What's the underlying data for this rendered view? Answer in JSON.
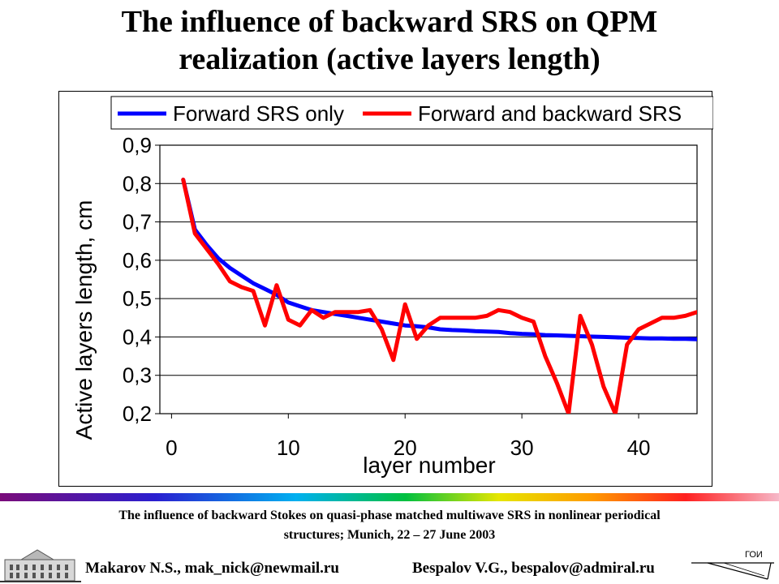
{
  "slide": {
    "title_line1": "The influence of backward SRS on QPM",
    "title_line2": "realization (active layers length)",
    "caption_line1": "The influence of backward Stokes on quasi-phase matched multiwave SRS in nonlinear periodical",
    "caption_line2": "structures;  Munich, 22 – 27 June 2003",
    "author1": "Makarov N.S., mak_nick@newmail.ru",
    "author2": "Bespalov V.G., bespalov@admiral.ru",
    "logo_right_text": "ГОИ"
  },
  "chart_data": {
    "type": "line",
    "title": "",
    "xlabel": "layer number",
    "ylabel": "Active layers length, cm",
    "xlim": [
      -1,
      45
    ],
    "ylim": [
      0.2,
      0.9
    ],
    "xticks": [
      0,
      10,
      20,
      30,
      40
    ],
    "xtick_labels": [
      "0",
      "10",
      "20",
      "30",
      "40"
    ],
    "yticks": [
      0.2,
      0.3,
      0.4,
      0.5,
      0.6,
      0.7,
      0.8,
      0.9
    ],
    "ytick_labels": [
      "0,2",
      "0,3",
      "0,4",
      "0,5",
      "0,6",
      "0,7",
      "0,8",
      "0,9"
    ],
    "grid": "horizontal",
    "legend_position": "top",
    "series": [
      {
        "name": "Forward SRS only",
        "color": "#0000ff",
        "x": [
          1,
          2,
          3,
          4,
          5,
          6,
          7,
          8,
          9,
          10,
          11,
          12,
          13,
          14,
          15,
          16,
          17,
          18,
          19,
          20,
          21,
          22,
          23,
          24,
          25,
          26,
          27,
          28,
          29,
          30,
          31,
          32,
          33,
          34,
          35,
          36,
          37,
          38,
          39,
          40,
          41,
          42,
          43,
          44,
          45
        ],
        "y": [
          0.81,
          0.68,
          0.64,
          0.605,
          0.58,
          0.56,
          0.54,
          0.525,
          0.51,
          0.49,
          0.48,
          0.47,
          0.465,
          0.46,
          0.455,
          0.45,
          0.445,
          0.44,
          0.435,
          0.43,
          0.428,
          0.425,
          0.42,
          0.418,
          0.417,
          0.415,
          0.414,
          0.413,
          0.41,
          0.408,
          0.407,
          0.405,
          0.404,
          0.403,
          0.402,
          0.401,
          0.4,
          0.399,
          0.398,
          0.397,
          0.396,
          0.396,
          0.395,
          0.395,
          0.394
        ]
      },
      {
        "name": "Forward and backward SRS",
        "color": "#ff0000",
        "x": [
          1,
          2,
          3,
          4,
          5,
          6,
          7,
          8,
          9,
          10,
          11,
          12,
          13,
          14,
          15,
          16,
          17,
          18,
          19,
          20,
          21,
          22,
          23,
          24,
          25,
          26,
          27,
          28,
          29,
          30,
          31,
          32,
          33,
          34,
          35,
          36,
          37,
          38,
          39,
          40,
          41,
          42,
          43,
          44,
          45
        ],
        "y": [
          0.81,
          0.67,
          0.63,
          0.59,
          0.545,
          0.53,
          0.52,
          0.43,
          0.535,
          0.445,
          0.43,
          0.47,
          0.45,
          0.465,
          0.465,
          0.465,
          0.47,
          0.42,
          0.34,
          0.485,
          0.395,
          0.43,
          0.45,
          0.45,
          0.45,
          0.45,
          0.455,
          0.47,
          0.465,
          0.45,
          0.44,
          0.35,
          0.28,
          0.2,
          0.455,
          0.38,
          0.27,
          0.2,
          0.38,
          0.42,
          0.435,
          0.45,
          0.45,
          0.455,
          0.465
        ]
      }
    ]
  }
}
